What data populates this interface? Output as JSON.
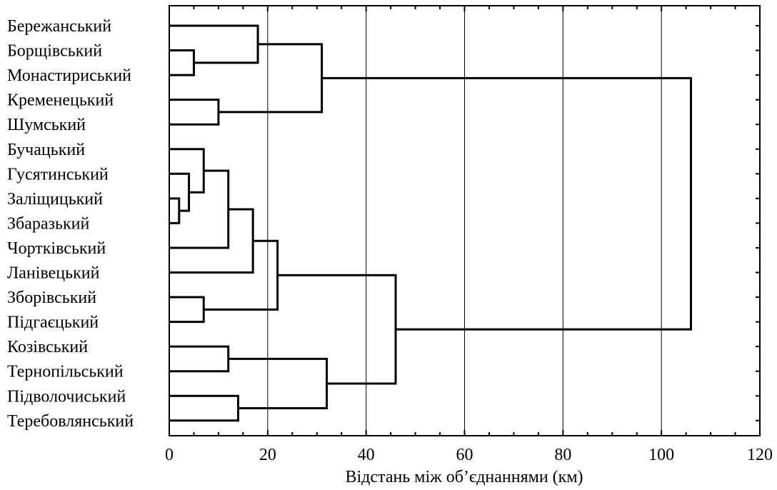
{
  "chart_data": {
    "type": "dendrogram",
    "title": "",
    "xlabel": "Відстань між об’єднаннями (км)",
    "ylabel": "",
    "xlim": [
      0,
      120
    ],
    "xticks": [
      0,
      20,
      40,
      60,
      80,
      100,
      120
    ],
    "grid": "vertical",
    "leaves": [
      "Бережанський",
      "Борщівський",
      "Монастириський",
      "Кременецький",
      "Шумський",
      "Бучацький",
      "Гусятинський",
      "Заліщицький",
      "Збаразький",
      "Чортківський",
      "Ланівецький",
      "Зборівський",
      "Підгаєцький",
      "Козівський",
      "Тернопільський",
      "Підволочиський",
      "Теребовлянський"
    ],
    "merges": [
      {
        "left": 7,
        "right": 8,
        "height": 2
      },
      {
        "left": 6,
        "right": "m0",
        "height": 4
      },
      {
        "left": 1,
        "right": 2,
        "height": 5
      },
      {
        "left": 5,
        "right": "m1",
        "height": 7
      },
      {
        "left": 11,
        "right": 12,
        "height": 7
      },
      {
        "left": 3,
        "right": 4,
        "height": 10
      },
      {
        "left": "m3",
        "right": 9,
        "height": 12
      },
      {
        "left": 13,
        "right": 14,
        "height": 12
      },
      {
        "left": 15,
        "right": 16,
        "height": 14
      },
      {
        "left": "m6",
        "right": 10,
        "height": 17
      },
      {
        "left": 0,
        "right": "m2",
        "height": 18
      },
      {
        "left": "m9",
        "right": "m4",
        "height": 22
      },
      {
        "left": "m10",
        "right": "m5",
        "height": 31
      },
      {
        "left": "m7",
        "right": "m8",
        "height": 32
      },
      {
        "left": "m11",
        "right": "m13",
        "height": 46
      },
      {
        "left": "m12",
        "right": "m14",
        "height": 106
      }
    ]
  }
}
